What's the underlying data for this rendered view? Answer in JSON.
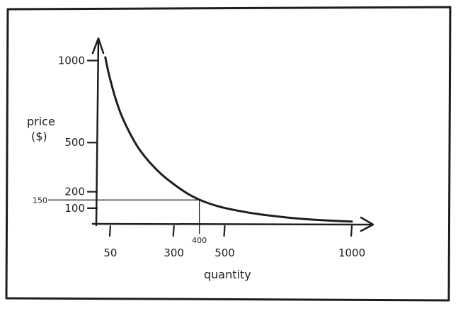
{
  "chart_data": {
    "type": "line",
    "title": "",
    "xlabel": "quantity",
    "ylabel_line1": "price",
    "ylabel_line2": "($)",
    "xlim": [
      0,
      1050
    ],
    "ylim": [
      0,
      1110
    ],
    "x_ticks": [
      {
        "value": 50,
        "label": "50"
      },
      {
        "value": 300,
        "label": "300"
      },
      {
        "value": 500,
        "label": "500"
      },
      {
        "value": 1000,
        "label": "1000"
      }
    ],
    "y_ticks": [
      {
        "value": 100,
        "label": "100"
      },
      {
        "value": 200,
        "label": "200"
      },
      {
        "value": 500,
        "label": "500"
      },
      {
        "value": 1000,
        "label": "1000"
      }
    ],
    "guide_point": {
      "x": 400,
      "y": 150,
      "x_label": "400",
      "y_label": "150"
    },
    "series": [
      {
        "name": "",
        "points": [
          [
            30,
            1020
          ],
          [
            40,
            940
          ],
          [
            60,
            820
          ],
          [
            80,
            720
          ],
          [
            100,
            640
          ],
          [
            130,
            545
          ],
          [
            160,
            465
          ],
          [
            200,
            385
          ],
          [
            250,
            305
          ],
          [
            300,
            245
          ],
          [
            350,
            190
          ],
          [
            400,
            150
          ],
          [
            450,
            122
          ],
          [
            500,
            100
          ],
          [
            600,
            70
          ],
          [
            700,
            50
          ],
          [
            800,
            35
          ],
          [
            900,
            25
          ],
          [
            1000,
            18
          ]
        ]
      }
    ],
    "grid": false,
    "legend": "none",
    "line_color": "#1e1e1e"
  }
}
